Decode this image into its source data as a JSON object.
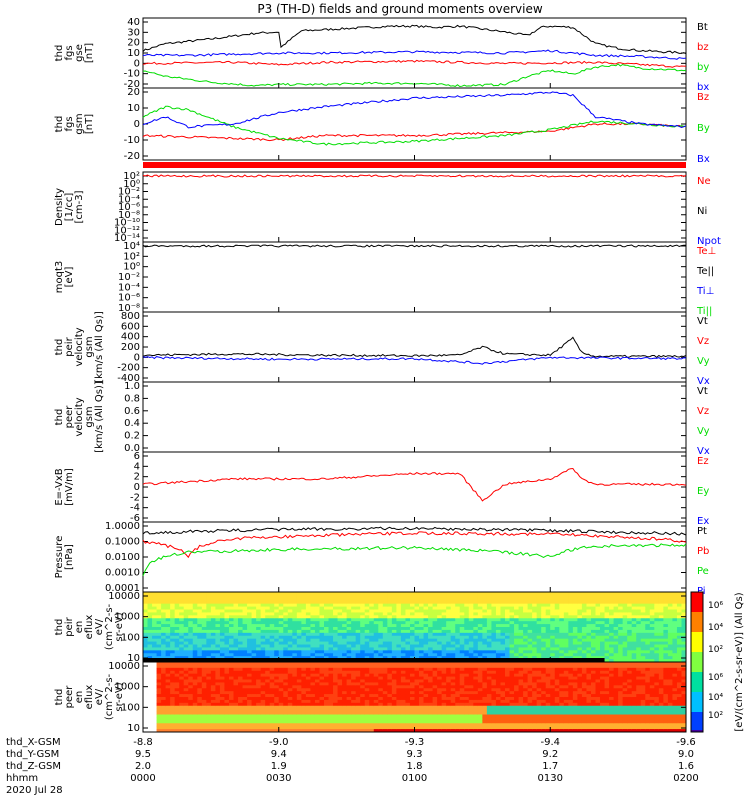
{
  "title": "P3 (TH-D) fields and ground moments overview",
  "colors": {
    "black": "#000000",
    "red": "#ff0000",
    "green": "#00dd00",
    "blue": "#0000ff"
  },
  "chart_data": [
    {
      "type": "line",
      "panel": "fgs-gse",
      "ylabel": [
        "thd",
        "fgs",
        "gse",
        "[nT]"
      ],
      "yticks": [
        "40",
        "30",
        "20",
        "10",
        "0",
        "-10",
        "-20"
      ],
      "ylim": [
        -20,
        40
      ],
      "legend": [
        {
          "label": "Bt",
          "color": "#000000"
        },
        {
          "label": "bz",
          "color": "#ff0000"
        },
        {
          "label": "by",
          "color": "#00dd00"
        },
        {
          "label": "bx",
          "color": "#0000ff"
        }
      ],
      "series": [
        {
          "name": "Bt",
          "x": [
            0,
            5,
            15,
            25,
            30,
            30.5,
            35,
            45,
            55,
            60,
            65,
            70,
            80,
            85,
            88,
            90,
            95,
            100,
            105,
            110,
            115,
            120
          ],
          "values": [
            12,
            18,
            22,
            27,
            28,
            15,
            29,
            31,
            33,
            33,
            32,
            33,
            28,
            25,
            32,
            33,
            32,
            18,
            14,
            12,
            11,
            10
          ]
        },
        {
          "name": "bz",
          "x": [
            0,
            20,
            30,
            40,
            60,
            80,
            100,
            120
          ],
          "values": [
            1,
            2,
            0,
            2,
            3,
            1,
            2,
            -2
          ]
        },
        {
          "name": "by",
          "x": [
            0,
            5,
            15,
            25,
            30,
            40,
            50,
            60,
            70,
            80,
            85,
            90,
            95,
            100,
            105,
            110,
            120
          ],
          "values": [
            -5,
            -10,
            -15,
            -18,
            -17,
            -17,
            -16,
            -16,
            -18,
            -17,
            -10,
            -5,
            -8,
            -2,
            0,
            -3,
            -5
          ]
        },
        {
          "name": "bx",
          "x": [
            0,
            10,
            20,
            30,
            40,
            60,
            80,
            90,
            100,
            110,
            120
          ],
          "values": [
            8,
            8,
            9,
            10,
            10,
            11,
            10,
            12,
            8,
            7,
            5
          ]
        }
      ]
    },
    {
      "type": "line",
      "panel": "fgs-gsm",
      "ylabel": [
        "thd",
        "fgs",
        "gsm",
        "[nT]"
      ],
      "yticks": [
        "20",
        "10",
        "0",
        "-10",
        "-20"
      ],
      "ylim": [
        -25,
        25
      ],
      "legend": [
        {
          "label": "Bz",
          "color": "#ff0000"
        },
        {
          "label": "By",
          "color": "#00dd00"
        },
        {
          "label": "Bx",
          "color": "#0000ff"
        }
      ],
      "series": [
        {
          "name": "Bz",
          "x": [
            0,
            10,
            20,
            30,
            40,
            60,
            80,
            90,
            100,
            110,
            120
          ],
          "values": [
            -8,
            -9,
            -10,
            -11,
            -8,
            -8,
            -6,
            -5,
            0,
            0,
            -2
          ]
        },
        {
          "name": "By",
          "x": [
            0,
            5,
            10,
            20,
            30,
            40,
            60,
            80,
            90,
            100,
            110,
            120
          ],
          "values": [
            5,
            12,
            10,
            -2,
            -10,
            -14,
            -12,
            -8,
            -4,
            2,
            0,
            -2
          ]
        },
        {
          "name": "Bx",
          "x": [
            0,
            5,
            10,
            20,
            30,
            40,
            60,
            80,
            90,
            95,
            100,
            110,
            120
          ],
          "values": [
            0,
            5,
            -2,
            0,
            8,
            12,
            18,
            20,
            22,
            20,
            5,
            0,
            -2
          ]
        }
      ]
    },
    {
      "type": "line",
      "panel": "density",
      "ylabel": [
        "Density",
        "[1/cc]",
        "[cm-3]"
      ],
      "yticks": [
        "10²",
        "10⁰",
        "10⁻²",
        "10⁻⁴",
        "10⁻⁶",
        "10⁻⁸",
        "10⁻¹⁰",
        "10⁻¹²",
        "10⁻¹⁴"
      ],
      "legend": [
        {
          "label": "Ne",
          "color": "#ff0000"
        },
        {
          "label": "Ni",
          "color": "#000000"
        },
        {
          "label": "Npot",
          "color": "#0000ff"
        }
      ],
      "series": [
        {
          "name": "Ne",
          "x": [
            0,
            120
          ],
          "values": [
            0.5,
            0.5
          ]
        }
      ]
    },
    {
      "type": "line",
      "panel": "temperature",
      "ylabel": [
        "moqt3",
        "[eV]"
      ],
      "yticks": [
        "10⁴",
        "10²",
        "10⁰",
        "10⁻²",
        "10⁻⁴",
        "10⁻⁶",
        "10⁻⁸"
      ],
      "legend": [
        {
          "label": "Te⊥",
          "color": "#ff0000"
        },
        {
          "label": "Te||",
          "color": "#000000"
        },
        {
          "label": "Ti⊥",
          "color": "#0000ff"
        },
        {
          "label": "Ti||",
          "color": "#00dd00"
        }
      ],
      "series": [
        {
          "name": "T",
          "x": [
            0,
            120
          ],
          "values": [
            3000,
            3000
          ]
        }
      ]
    },
    {
      "type": "line",
      "panel": "peir-velocity",
      "ylabel": [
        "thd",
        "peir",
        "velocity",
        "gsm",
        "[km/s (All Qs)]"
      ],
      "yticks": [
        "800",
        "600",
        "400",
        "200",
        "0",
        "-200",
        "-400"
      ],
      "ylim": [
        -400,
        800
      ],
      "legend": [
        {
          "label": "Vt",
          "color": "#000000"
        },
        {
          "label": "Vz",
          "color": "#ff0000"
        },
        {
          "label": "Vy",
          "color": "#00dd00"
        },
        {
          "label": "Vx",
          "color": "#0000ff"
        }
      ],
      "series": [
        {
          "name": "Vt",
          "x": [
            0,
            20,
            40,
            60,
            70,
            75,
            80,
            90,
            95,
            97,
            100,
            120
          ],
          "values": [
            60,
            80,
            60,
            50,
            60,
            200,
            80,
            60,
            350,
            100,
            40,
            40
          ]
        },
        {
          "name": "Vx",
          "x": [
            0,
            30,
            60,
            75,
            90,
            120
          ],
          "values": [
            20,
            -10,
            0,
            -80,
            20,
            0
          ]
        }
      ]
    },
    {
      "type": "line",
      "panel": "peer-velocity",
      "ylabel": [
        "thd",
        "peer",
        "velocity",
        "gsm",
        "[km/s (All Qs)]"
      ],
      "yticks": [
        "1.0",
        "0.8",
        "0.6",
        "0.4",
        "0.2",
        "0.0"
      ],
      "ylim": [
        0,
        1
      ],
      "legend": [
        {
          "label": "Vt",
          "color": "#000000"
        },
        {
          "label": "Vz",
          "color": "#ff0000"
        },
        {
          "label": "Vy",
          "color": "#00dd00"
        },
        {
          "label": "Vx",
          "color": "#0000ff"
        }
      ],
      "series": []
    },
    {
      "type": "line",
      "panel": "efield",
      "ylabel": [
        "E=-VxB",
        "[mV/m]"
      ],
      "yticks": [
        "6",
        "4",
        "2",
        "0",
        "-2",
        "-4",
        "-6"
      ],
      "ylim": [
        -7,
        6
      ],
      "legend": [
        {
          "label": "Ez",
          "color": "#ff0000"
        },
        {
          "label": "Ey",
          "color": "#00dd00"
        },
        {
          "label": "Ex",
          "color": "#0000ff"
        }
      ],
      "series": [
        {
          "name": "Ez",
          "x": [
            0,
            20,
            40,
            60,
            70,
            75,
            80,
            90,
            95,
            97,
            100,
            120
          ],
          "values": [
            0,
            1,
            1,
            2,
            2,
            -3,
            0,
            1,
            3,
            1,
            0,
            0
          ]
        }
      ]
    },
    {
      "type": "line",
      "panel": "pressure",
      "ylabel": [
        "Pressure",
        "[nPa]"
      ],
      "yticks": [
        "1.0000",
        "0.1000",
        "0.0100",
        "0.0010",
        "0.0001"
      ],
      "legend": [
        {
          "label": "Pt",
          "color": "#000000"
        },
        {
          "label": "Pb",
          "color": "#ff0000"
        },
        {
          "label": "Pe",
          "color": "#00dd00"
        },
        {
          "label": "Pi",
          "color": "#0000ff"
        }
      ],
      "series": [
        {
          "name": "Pt",
          "x": [
            0,
            30,
            60,
            90,
            120
          ],
          "values": [
            0.35,
            0.6,
            0.7,
            0.5,
            0.3
          ]
        },
        {
          "name": "Pb",
          "x": [
            0,
            10,
            20,
            30,
            60,
            90,
            120
          ],
          "values": [
            0.1,
            0.01,
            0.15,
            0.2,
            0.35,
            0.3,
            0.1
          ]
        },
        {
          "name": "Pe",
          "x": [
            0,
            2,
            10,
            30,
            60,
            90,
            100,
            120
          ],
          "values": [
            0.0005,
            0.005,
            0.02,
            0.03,
            0.04,
            0.01,
            0.05,
            0.06
          ]
        }
      ]
    },
    {
      "type": "heatmap",
      "panel": "peir-eflux",
      "ylabel": [
        "thd",
        "peir",
        "en",
        "eflux",
        "eV/",
        "(cm^2-s-",
        "sr-eV)"
      ],
      "yticks": [
        "10000",
        "1000",
        "100",
        "10"
      ]
    },
    {
      "type": "heatmap",
      "panel": "peer-eflux",
      "ylabel": [
        "thd",
        "peer",
        "en",
        "eflux",
        "eV/",
        "(cm^2-s-",
        "sr-eV)"
      ],
      "yticks": [
        "10000",
        "1000",
        "100",
        "10"
      ]
    }
  ],
  "colorbar": {
    "ticks": [
      "10⁶",
      "10⁴",
      "10²"
    ],
    "label": "[eV/(cm^2-s-sr-eV)] (All Qs)"
  },
  "xaxis": {
    "row_labels": [
      "thd_X-GSM",
      "thd_Y-GSM",
      "thd_Z-GSM",
      "hhmm",
      "2020 Jul 28"
    ],
    "ticks": [
      {
        "x": "-8.8",
        "y": "9.5",
        "z": "2.0",
        "t": "0000"
      },
      {
        "x": "-9.0",
        "y": "9.4",
        "z": "1.9",
        "t": "0030"
      },
      {
        "x": "-9.3",
        "y": "9.3",
        "z": "1.8",
        "t": "0100"
      },
      {
        "x": "-9.4",
        "y": "9.2",
        "z": "1.7",
        "t": "0130"
      },
      {
        "x": "-9.6",
        "y": "9.0",
        "z": "1.6",
        "t": "0200"
      }
    ]
  }
}
